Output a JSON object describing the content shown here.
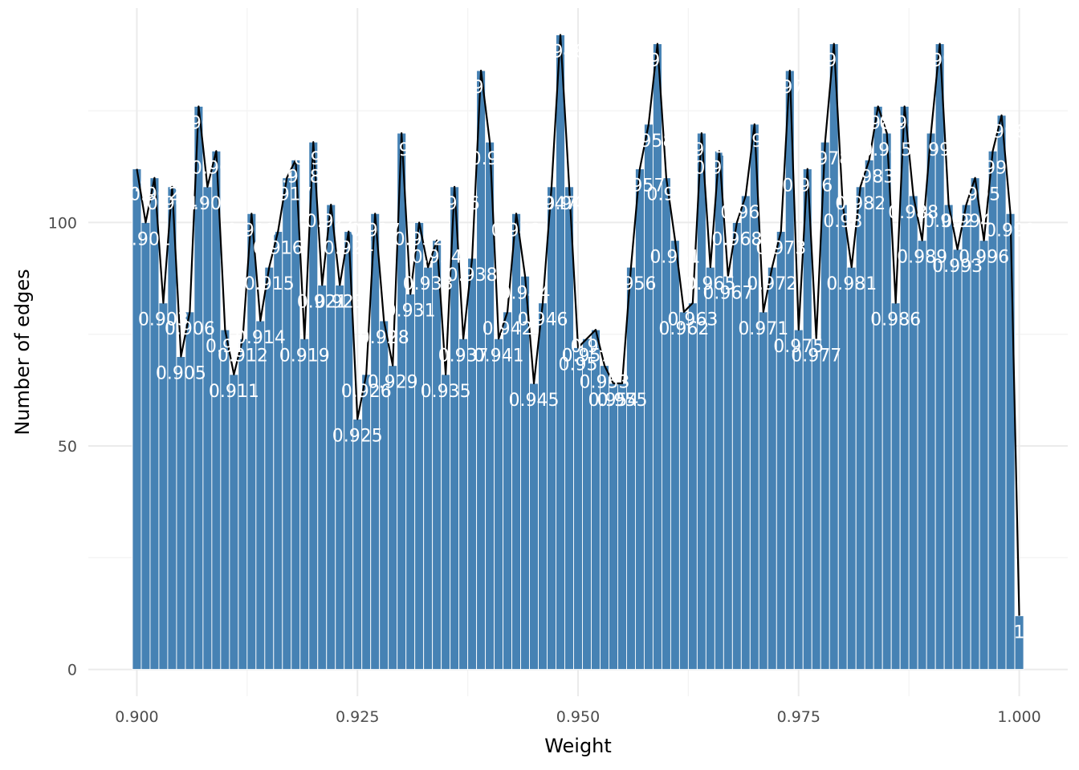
{
  "chart_data": {
    "type": "bar",
    "xlabel": "Weight",
    "ylabel": "Number of edges",
    "xlim": [
      0.8945,
      1.0055
    ],
    "ylim": [
      -6,
      148
    ],
    "x_ticks": [
      0.9,
      0.925,
      0.95,
      0.975,
      1.0
    ],
    "x_tick_labels": [
      "0.900",
      "0.925",
      "0.950",
      "0.975",
      "1.000"
    ],
    "y_ticks": [
      0,
      50,
      100
    ],
    "y_tick_labels": [
      "0",
      "50",
      "100"
    ],
    "grid": true,
    "legend": "none",
    "bar_color": "#4682b4",
    "line_color": "#000000",
    "label_color": "#ffffff",
    "x": [
      0.9,
      0.901,
      0.902,
      0.903,
      0.904,
      0.905,
      0.906,
      0.907,
      0.908,
      0.909,
      0.91,
      0.911,
      0.912,
      0.913,
      0.914,
      0.915,
      0.916,
      0.917,
      0.918,
      0.919,
      0.92,
      0.921,
      0.922,
      0.923,
      0.924,
      0.925,
      0.926,
      0.927,
      0.928,
      0.929,
      0.93,
      0.931,
      0.932,
      0.933,
      0.934,
      0.935,
      0.936,
      0.937,
      0.938,
      0.939,
      0.94,
      0.941,
      0.942,
      0.943,
      0.944,
      0.945,
      0.946,
      0.947,
      0.948,
      0.949,
      0.95,
      0.951,
      0.952,
      0.953,
      0.954,
      0.955,
      0.956,
      0.957,
      0.958,
      0.959,
      0.96,
      0.961,
      0.962,
      0.963,
      0.964,
      0.965,
      0.966,
      0.967,
      0.968,
      0.969,
      0.97,
      0.971,
      0.972,
      0.973,
      0.974,
      0.975,
      0.976,
      0.977,
      0.978,
      0.979,
      0.98,
      0.981,
      0.982,
      0.983,
      0.984,
      0.985,
      0.986,
      0.987,
      0.988,
      0.989,
      0.99,
      0.991,
      0.992,
      0.993,
      0.994,
      0.995,
      0.996,
      0.997,
      0.998,
      0.999,
      1.0
    ],
    "values": [
      112,
      100,
      110,
      82,
      108,
      70,
      80,
      126,
      108,
      116,
      76,
      66,
      74,
      102,
      78,
      90,
      98,
      110,
      114,
      74,
      118,
      86,
      104,
      86,
      98,
      56,
      66,
      102,
      78,
      68,
      120,
      84,
      100,
      90,
      96,
      66,
      108,
      74,
      92,
      134,
      118,
      74,
      80,
      102,
      88,
      64,
      82,
      108,
      142,
      108,
      72,
      74,
      76,
      68,
      64,
      64,
      90,
      112,
      122,
      140,
      110,
      96,
      80,
      82,
      120,
      90,
      116,
      88,
      100,
      106,
      122,
      80,
      90,
      98,
      134,
      76,
      112,
      74,
      118,
      140,
      104,
      90,
      108,
      114,
      126,
      120,
      82,
      126,
      106,
      96,
      120,
      140,
      104,
      94,
      104,
      110,
      96,
      116,
      124,
      102,
      12
    ],
    "labels": [
      "0.9",
      "0.901",
      "0.902",
      "0.903",
      "0.904",
      "0.905",
      "0.906",
      "0.907",
      "0.908",
      "0.909",
      "0.91",
      "0.911",
      "0.912",
      "0.913",
      "0.914",
      "0.915",
      "0.916",
      "0.917",
      "0.918",
      "0.919",
      "0.92",
      "0.921",
      "0.922",
      "0.923",
      "0.924",
      "0.925",
      "0.926",
      "0.927",
      "0.928",
      "0.929",
      "0.93",
      "0.931",
      "0.932",
      "0.933",
      "0.934",
      "0.935",
      "0.936",
      "0.937",
      "0.938",
      "0.939",
      "0.94",
      "0.941",
      "0.942",
      "0.943",
      "0.944",
      "0.945",
      "0.946",
      "0.947",
      "0.948",
      "0.949",
      "0.95",
      "0.951",
      "0.952",
      "0.953",
      "0.954",
      "0.955",
      "0.956",
      "0.957",
      "0.958",
      "0.959",
      "0.96",
      "0.961",
      "0.962",
      "0.963",
      "0.964",
      "0.965",
      "0.966",
      "0.967",
      "0.968",
      "0.969",
      "0.97",
      "0.971",
      "0.972",
      "0.973",
      "0.974",
      "0.975",
      "0.976",
      "0.977",
      "0.978",
      "0.979",
      "0.98",
      "0.981",
      "0.982",
      "0.983",
      "0.984",
      "0.985",
      "0.986",
      "0.987",
      "0.988",
      "0.989",
      "0.99",
      "0.991",
      "0.992",
      "0.993",
      "0.994",
      "0.995",
      "0.996",
      "0.997",
      "0.998",
      "0.999",
      "1"
    ]
  }
}
